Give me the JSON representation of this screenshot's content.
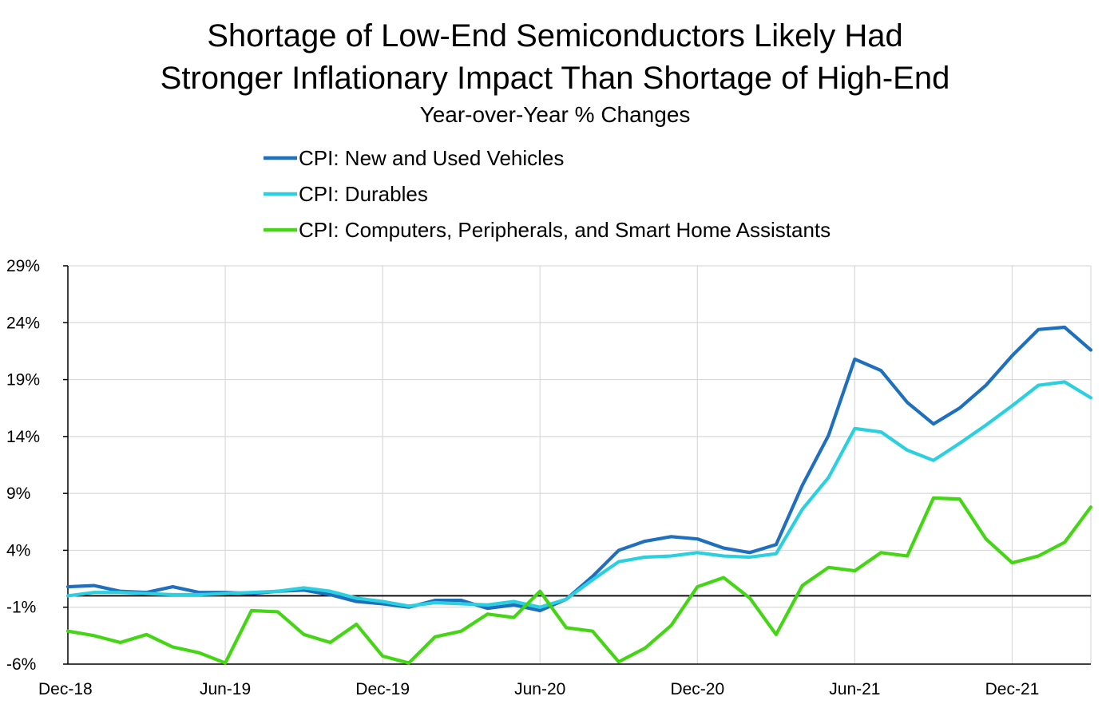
{
  "chart_data": {
    "type": "line",
    "title": "Shortage of Low-End Semiconductors Likely Had",
    "title_line2": "Stronger Inflationary Impact Than Shortage of High-End",
    "subtitle": "Year-over-Year % Changes",
    "xlabel": "",
    "ylabel": "",
    "ylim": [
      -6,
      29
    ],
    "yticks": [
      29,
      24,
      19,
      14,
      9,
      4,
      -1,
      -6
    ],
    "ytick_labels": [
      "29%",
      "24%",
      "19%",
      "14%",
      "9%",
      "4%",
      "-1%",
      "-6%"
    ],
    "xtick_labels": [
      "Dec-18",
      "Jun-19",
      "Dec-19",
      "Jun-20",
      "Dec-20",
      "Jun-21",
      "Dec-21"
    ],
    "xtick_positions": [
      0,
      6,
      12,
      18,
      24,
      30,
      36
    ],
    "legend_position": "top-center",
    "grid": true,
    "x": [
      0,
      1,
      2,
      3,
      4,
      5,
      6,
      7,
      8,
      9,
      10,
      11,
      12,
      13,
      14,
      15,
      16,
      17,
      18,
      19,
      20,
      21,
      22,
      23,
      24,
      25,
      26,
      27,
      28,
      29,
      30,
      31,
      32,
      33,
      34,
      35,
      36,
      37,
      38,
      39
    ],
    "series": [
      {
        "name": "CPI: New and Used Vehicles",
        "color": "#1f6fbf",
        "values": [
          0.8,
          0.9,
          0.4,
          0.3,
          0.8,
          0.3,
          0.3,
          0.2,
          0.4,
          0.5,
          0.1,
          -0.5,
          -0.7,
          -1.0,
          -0.4,
          -0.4,
          -1.1,
          -0.8,
          -1.3,
          -0.3,
          1.7,
          4.0,
          4.8,
          5.2,
          5.0,
          4.2,
          3.8,
          4.5,
          9.7,
          14.1,
          20.8,
          19.8,
          17.0,
          15.1,
          16.5,
          18.5,
          21.1,
          23.4,
          23.6,
          21.6
        ]
      },
      {
        "name": "CPI: Durables",
        "color": "#2ad0e0",
        "values": [
          0.0,
          0.3,
          0.3,
          0.2,
          0.1,
          0.1,
          0.2,
          0.3,
          0.4,
          0.7,
          0.4,
          -0.2,
          -0.5,
          -0.9,
          -0.6,
          -0.7,
          -0.8,
          -0.5,
          -1.0,
          -0.3,
          1.4,
          3.0,
          3.4,
          3.5,
          3.8,
          3.5,
          3.4,
          3.7,
          7.6,
          10.4,
          14.7,
          14.4,
          12.8,
          11.9,
          13.4,
          15.0,
          16.7,
          18.5,
          18.8,
          17.4
        ]
      },
      {
        "name": "CPI: Computers, Peripherals, and Smart Home Assistants",
        "color": "#44d614",
        "values": [
          -3.1,
          -3.5,
          -4.1,
          -3.4,
          -4.5,
          -5.0,
          -5.9,
          -1.3,
          -1.4,
          -3.4,
          -4.1,
          -2.5,
          -5.3,
          -5.9,
          -3.6,
          -3.1,
          -1.6,
          -1.9,
          0.4,
          -2.8,
          -3.1,
          -5.8,
          -4.6,
          -2.6,
          0.8,
          1.6,
          -0.2,
          -3.4,
          0.9,
          2.5,
          2.2,
          3.8,
          3.5,
          8.6,
          8.5,
          5.0,
          2.9,
          3.5,
          4.7,
          7.8
        ]
      }
    ]
  }
}
